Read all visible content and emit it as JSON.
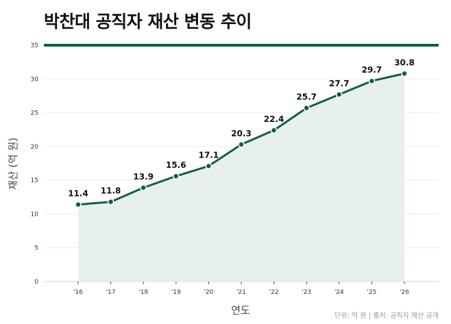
{
  "title": "박찬대 공직자 재산 변동 추이",
  "source": "단위: 억 원 | 출처: 공직자 재산 공개",
  "colors": {
    "line": "#0f5e43",
    "area": "#e8f0ee",
    "grid": "#ececec",
    "header_rule": "#0f5e43"
  },
  "chart_data": {
    "type": "area",
    "categories": [
      "'16",
      "'17",
      "'18",
      "'19",
      "'20",
      "'21",
      "'22",
      "'23",
      "'24",
      "'25",
      "'26"
    ],
    "values": [
      11.4,
      11.8,
      13.9,
      15.6,
      17.1,
      20.3,
      22.4,
      25.7,
      27.7,
      29.7,
      30.8
    ],
    "value_labels": [
      "11.4",
      "11.8",
      "13.9",
      "15.6",
      "17.1",
      "20.3",
      "22.4",
      "25.7",
      "27.7",
      "29.7",
      "30.8"
    ],
    "xlabel": "연도",
    "ylabel": "재산 (억 원)",
    "ylim": [
      0,
      35
    ],
    "yticks": [
      "0",
      "5",
      "10",
      "15",
      "20",
      "25",
      "30",
      "35"
    ],
    "grid": true
  }
}
